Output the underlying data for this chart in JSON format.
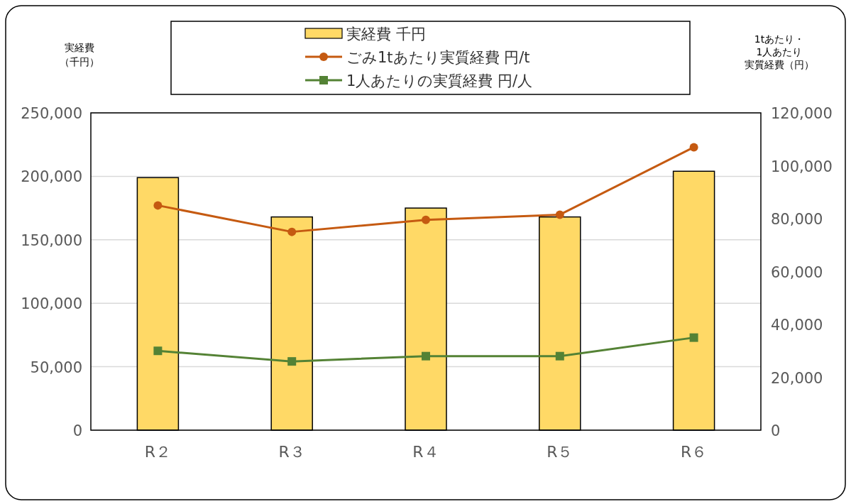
{
  "chart_data": {
    "type": "bar",
    "categories": [
      "R２",
      "R３",
      "R４",
      "R５",
      "R６"
    ],
    "series": [
      {
        "name": "実経費 千円",
        "color": "#ffd966",
        "values": [
          199000,
          168000,
          175000,
          168000,
          204000
        ]
      },
      {
        "name": "ごみ1tあたり実質経費 円/t",
        "type": "line",
        "axis": "y2",
        "marker": "circle",
        "color": "#c55a11",
        "values": [
          85000,
          75000,
          79500,
          81500,
          107000
        ]
      },
      {
        "name": "1人あたりの実質経費 円/人",
        "type": "line",
        "axis": "y2",
        "marker": "square",
        "color": "#548235",
        "values": [
          30000,
          26000,
          28000,
          28000,
          35000
        ]
      }
    ],
    "ylabel": "実経費（千円）",
    "y2label": "1tあたり・1人あたり実質経費（円）",
    "ylim": [
      0,
      250000
    ],
    "yticks": [
      0,
      {
        "value": 50000,
        "label": "50,000"
      },
      {
        "value": 100000,
        "label": "100,000"
      },
      {
        "value": 150000,
        "label": "150,000"
      },
      {
        "value": 200000,
        "label": "200,000"
      },
      {
        "value": 250000,
        "label": "250,000"
      }
    ],
    "y2lim": [
      0,
      120000
    ],
    "y2ticks": [
      0,
      {
        "value": 20000,
        "label": "20,000"
      },
      {
        "value": 40000,
        "label": "40,000"
      },
      {
        "value": 60000,
        "label": "60,000"
      },
      {
        "value": 80000,
        "label": "80,000"
      },
      {
        "value": 100000,
        "label": "100,000"
      },
      {
        "value": 120000,
        "label": "120,000"
      }
    ],
    "grid": "y",
    "legend": "top"
  }
}
